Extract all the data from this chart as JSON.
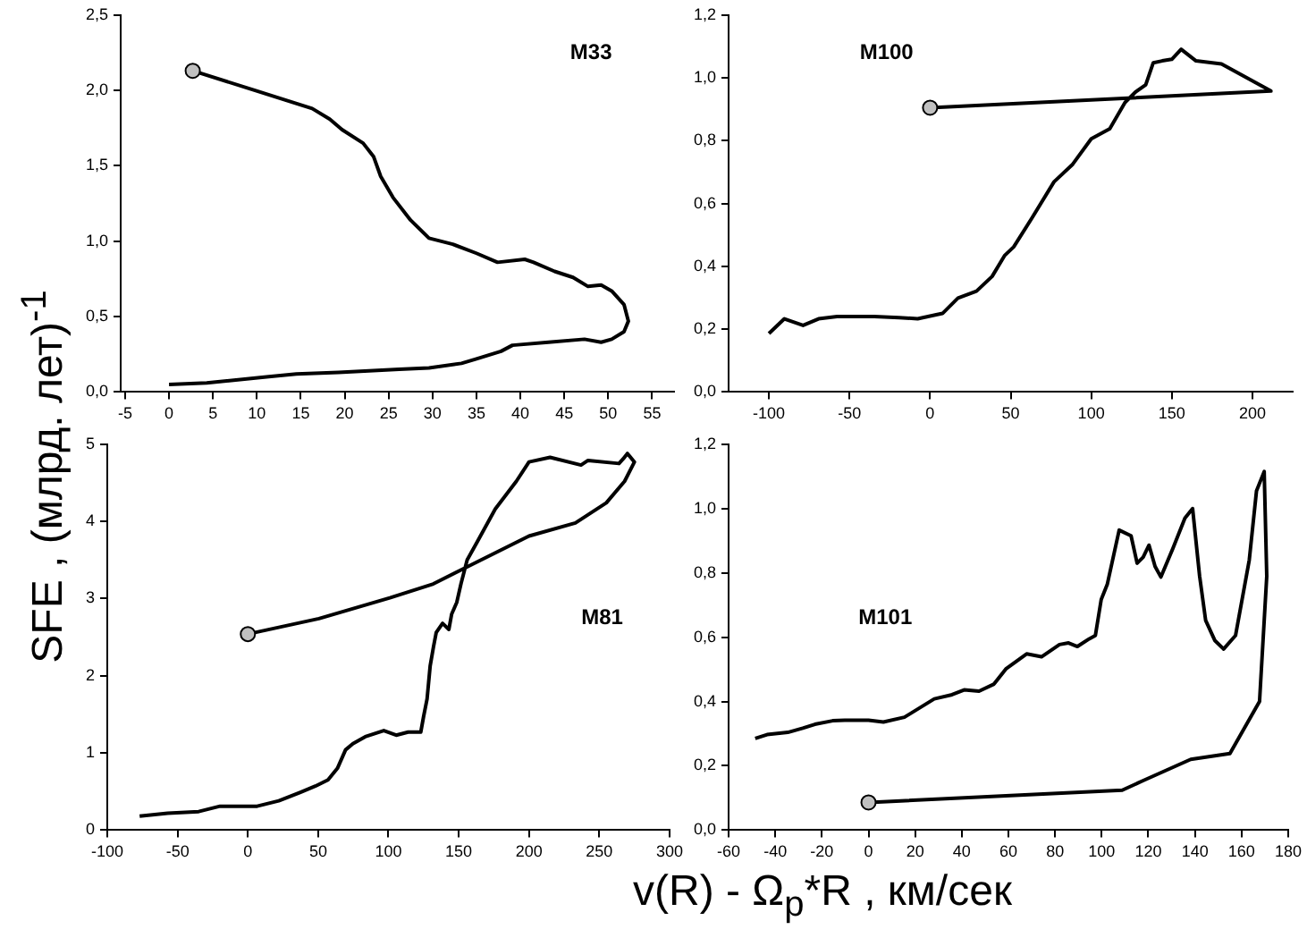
{
  "chart_data": [
    {
      "type": "line",
      "title": "M33",
      "ylabel": "SFE , (млрд. лет)$^{-1}$",
      "xlim": [
        -5.5,
        57.5
      ],
      "ylim": [
        0,
        2.5
      ],
      "xticks": [
        -5,
        0,
        5,
        10,
        15,
        20,
        25,
        30,
        35,
        40,
        45,
        50,
        55
      ],
      "yticks": [
        {
          "value": 0,
          "label": "0,0"
        },
        {
          "value": 0.5,
          "label": "0,5"
        },
        {
          "value": 1,
          "label": "1,0"
        },
        {
          "value": 1.5,
          "label": "1,5"
        },
        {
          "value": 2,
          "label": "2,0"
        },
        {
          "value": 2.5,
          "label": "2,5"
        }
      ],
      "series": [
        {
          "color": "#000000",
          "x": [
            2.7,
            9.8,
            16.3,
            18.3,
            19.7,
            22.1,
            23.3,
            24.1,
            25.5,
            27.5,
            29.6,
            32.3,
            35.0,
            37.4,
            40.5,
            41.5,
            43.9,
            46.0,
            47.7,
            49.2,
            50.4,
            51.8,
            52.3,
            51.8,
            50.4,
            49.2,
            47.3,
            43.2,
            39.1,
            37.8,
            35.0,
            33.3,
            29.6,
            26.2,
            19.3,
            14.5,
            11.1,
            4.3,
            0
          ],
          "values": [
            2.13,
            2.0,
            1.88,
            1.81,
            1.74,
            1.65,
            1.56,
            1.43,
            1.29,
            1.14,
            1.02,
            0.98,
            0.92,
            0.86,
            0.88,
            0.86,
            0.8,
            0.76,
            0.7,
            0.71,
            0.67,
            0.58,
            0.47,
            0.4,
            0.35,
            0.33,
            0.35,
            0.33,
            0.31,
            0.27,
            0.22,
            0.19,
            0.16,
            0.15,
            0.13,
            0.12,
            0.1,
            0.06,
            0.05
          ]
        },
        {
          "type": "scatter",
          "color": "#c0c0c0",
          "x": [
            2.7
          ],
          "values": [
            2.13
          ]
        }
      ]
    },
    {
      "type": "line",
      "title": "M100",
      "xlim": [
        -125,
        225
      ],
      "ylim": [
        0,
        1.2
      ],
      "xticks": [
        -100,
        -50,
        0,
        50,
        100,
        150,
        200
      ],
      "yticks": [
        {
          "value": 0,
          "label": "0,0"
        },
        {
          "value": 0.2,
          "label": "0,2"
        },
        {
          "value": 0.4,
          "label": "0,4"
        },
        {
          "value": 0.6,
          "label": "0,6"
        },
        {
          "value": 0.8,
          "label": "0,8"
        },
        {
          "value": 1,
          "label": "1,0"
        },
        {
          "value": 1.2,
          "label": "1,2"
        }
      ],
      "series": [
        {
          "color": "#000000",
          "x": [
            0,
            211.5,
            180.8,
            165,
            155.8,
            150,
            144,
            138.5,
            133.8,
            127.7,
            121,
            111.5,
            100,
            88.5,
            76.9,
            63.5,
            51.9,
            46.2,
            38.5,
            28.8,
            17.3,
            7.7,
            3.8,
            -7.7,
            -19.2,
            -34.6,
            -57.7,
            -69.2,
            -78.8,
            -90.4,
            -100
          ],
          "values": [
            0.905,
            0.958,
            1.044,
            1.054,
            1.091,
            1.059,
            1.054,
            1.048,
            0.978,
            0.956,
            0.922,
            0.838,
            0.806,
            0.725,
            0.669,
            0.556,
            0.462,
            0.434,
            0.368,
            0.321,
            0.299,
            0.25,
            0.246,
            0.233,
            0.237,
            0.24,
            0.24,
            0.233,
            0.212,
            0.233,
            0.186
          ]
        },
        {
          "type": "scatter",
          "color": "#c0c0c0",
          "x": [
            0
          ],
          "values": [
            0.905
          ]
        }
      ]
    },
    {
      "type": "line",
      "title": "M81",
      "xlabel": "v(R) - Ω$_{p}$*R , км/сек",
      "xlim": [
        -100,
        300
      ],
      "ylim": [
        0,
        5
      ],
      "xticks": [
        -100,
        -50,
        0,
        50,
        100,
        150,
        200,
        250,
        300
      ],
      "yticks": [
        0,
        1,
        2,
        3,
        4,
        5
      ],
      "series": [
        {
          "color": "#000000",
          "x": [
            0,
            50.5,
            101,
            131.9,
            156,
            200,
            233,
            255,
            268,
            275,
            270,
            267,
            264,
            242,
            237,
            215,
            200,
            191,
            176,
            163,
            156,
            151.6,
            148.6,
            145,
            143,
            138.5,
            134,
            132,
            129.7,
            127.5,
            125,
            123,
            114,
            105.5,
            96.7,
            83.5,
            74.7,
            69.5,
            63.7,
            57,
            48,
            37.4,
            22,
            6.6,
            -6.6,
            -19.8,
            -35,
            -57,
            -77
          ],
          "values": [
            2.54,
            2.74,
            3.01,
            3.19,
            3.41,
            3.81,
            3.98,
            4.24,
            4.52,
            4.77,
            4.88,
            4.81,
            4.75,
            4.79,
            4.73,
            4.83,
            4.77,
            4.52,
            4.16,
            3.73,
            3.5,
            3.19,
            2.95,
            2.8,
            2.6,
            2.68,
            2.56,
            2.37,
            2.13,
            1.7,
            1.47,
            1.27,
            1.27,
            1.23,
            1.29,
            1.21,
            1.12,
            1.04,
            0.8,
            0.65,
            0.57,
            0.49,
            0.38,
            0.31,
            0.31,
            0.31,
            0.24,
            0.22,
            0.18
          ]
        },
        {
          "type": "scatter",
          "color": "#c0c0c0",
          "x": [
            0
          ],
          "values": [
            2.54
          ]
        }
      ]
    },
    {
      "type": "line",
      "title": "M101",
      "xlim": [
        -60,
        180
      ],
      "ylim": [
        0,
        1.2
      ],
      "xticks": [
        -60,
        -40,
        -20,
        0,
        20,
        40,
        60,
        80,
        100,
        120,
        140,
        160,
        180
      ],
      "yticks": [
        {
          "value": 0,
          "label": "0,0"
        },
        {
          "value": 0.2,
          "label": "0,2"
        },
        {
          "value": 0.4,
          "label": "0,4"
        },
        {
          "value": 0.6,
          "label": "0,6"
        },
        {
          "value": 0.8,
          "label": "0,8"
        },
        {
          "value": 1,
          "label": "1,0"
        },
        {
          "value": 1.2,
          "label": "1,2"
        }
      ],
      "series": [
        {
          "color": "#000000",
          "x": [
            0,
            108.8,
            117.8,
            138.2,
            155,
            167.7,
            170.8,
            169.7,
            166.4,
            163.3,
            157.4,
            152.3,
            148.5,
            144.6,
            142,
            139,
            135.7,
            130.6,
            125.4,
            122.9,
            120.3,
            117.8,
            115.2,
            112.6,
            107.5,
            102.4,
            99.8,
            97.3,
            94.7,
            89.6,
            85.8,
            81.9,
            74.2,
            67.8,
            58.9,
            53.8,
            47.4,
            41,
            35.8,
            28.2,
            15.4,
            6.4,
            0,
            -10.2,
            -15.4,
            -23,
            -28.2,
            -34.6,
            -43.5,
            -48.6
          ],
          "values": [
            0.086,
            0.124,
            0.154,
            0.22,
            0.238,
            0.4,
            0.79,
            1.115,
            1.055,
            0.84,
            0.605,
            0.563,
            0.59,
            0.652,
            0.79,
            1.0,
            0.97,
            0.877,
            0.787,
            0.82,
            0.886,
            0.849,
            0.83,
            0.915,
            0.933,
            0.764,
            0.717,
            0.605,
            0.595,
            0.571,
            0.582,
            0.577,
            0.539,
            0.548,
            0.501,
            0.454,
            0.432,
            0.436,
            0.421,
            0.408,
            0.351,
            0.336,
            0.342,
            0.342,
            0.34,
            0.329,
            0.317,
            0.304,
            0.297,
            0.285
          ]
        },
        {
          "type": "scatter",
          "color": "#c0c0c0",
          "x": [
            0
          ],
          "values": [
            0.086
          ]
        }
      ]
    }
  ]
}
